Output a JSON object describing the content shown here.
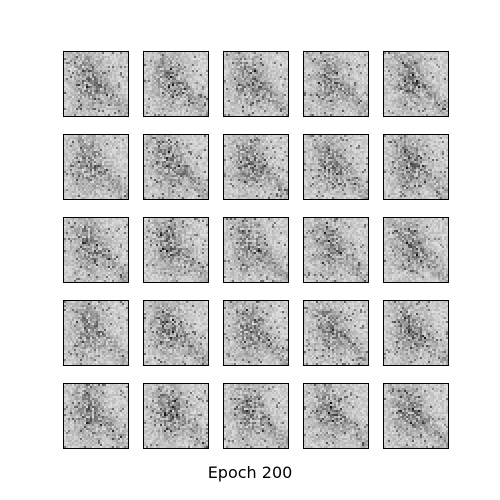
{
  "figure": {
    "caption": "Epoch 200",
    "grid": {
      "rows": 5,
      "cols": 5
    },
    "tile_style": "grayscale noisy generated sample",
    "colors": {
      "background": "#ffffff",
      "border": "#000000",
      "base_gray": "#d6d6d6"
    }
  }
}
